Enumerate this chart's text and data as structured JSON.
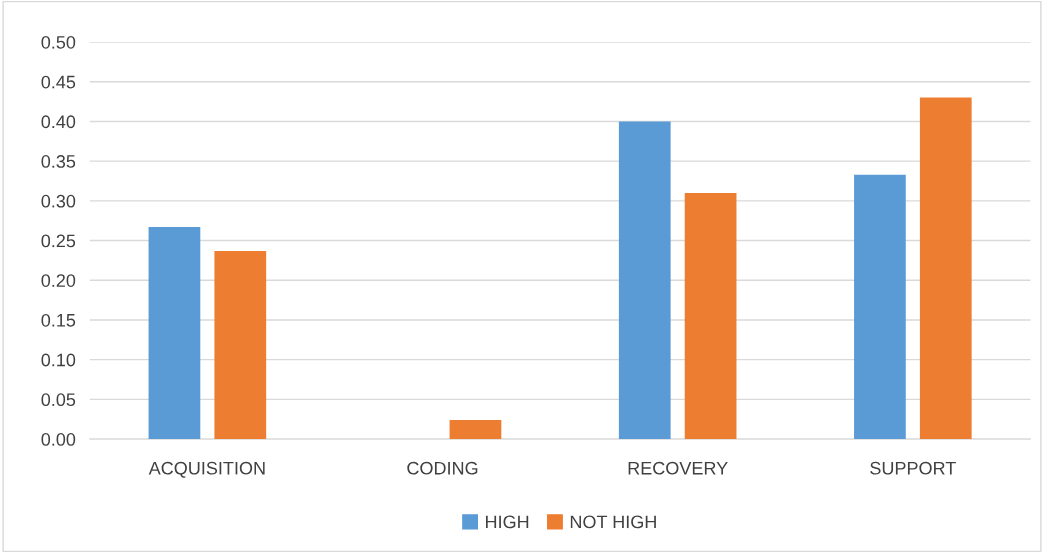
{
  "chart_data": {
    "type": "bar",
    "categories": [
      "ACQUISITION",
      "CODING",
      "RECOVERY",
      "SUPPORT"
    ],
    "series": [
      {
        "name": "HIGH",
        "color": "#5b9bd5",
        "values": [
          0.267,
          0,
          0.4,
          0.333
        ]
      },
      {
        "name": "NOT HIGH",
        "color": "#ed7d31",
        "values": [
          0.237,
          0.024,
          0.31,
          0.43
        ]
      }
    ],
    "ylim": [
      0,
      0.5
    ],
    "yticks": [
      {
        "value": 0,
        "label": "0.00"
      },
      {
        "value": 0.05,
        "label": "0.05"
      },
      {
        "value": 0.1,
        "label": "0.10"
      },
      {
        "value": 0.15,
        "label": "0.15"
      },
      {
        "value": 0.2,
        "label": "0.20"
      },
      {
        "value": 0.25,
        "label": "0.25"
      },
      {
        "value": 0.3,
        "label": "0.30"
      },
      {
        "value": 0.35,
        "label": "0.35"
      },
      {
        "value": 0.4,
        "label": "0.40"
      },
      {
        "value": 0.45,
        "label": "0.45"
      },
      {
        "value": 0.5,
        "label": "0.50"
      }
    ],
    "grid": "y",
    "legend": "bottom"
  }
}
